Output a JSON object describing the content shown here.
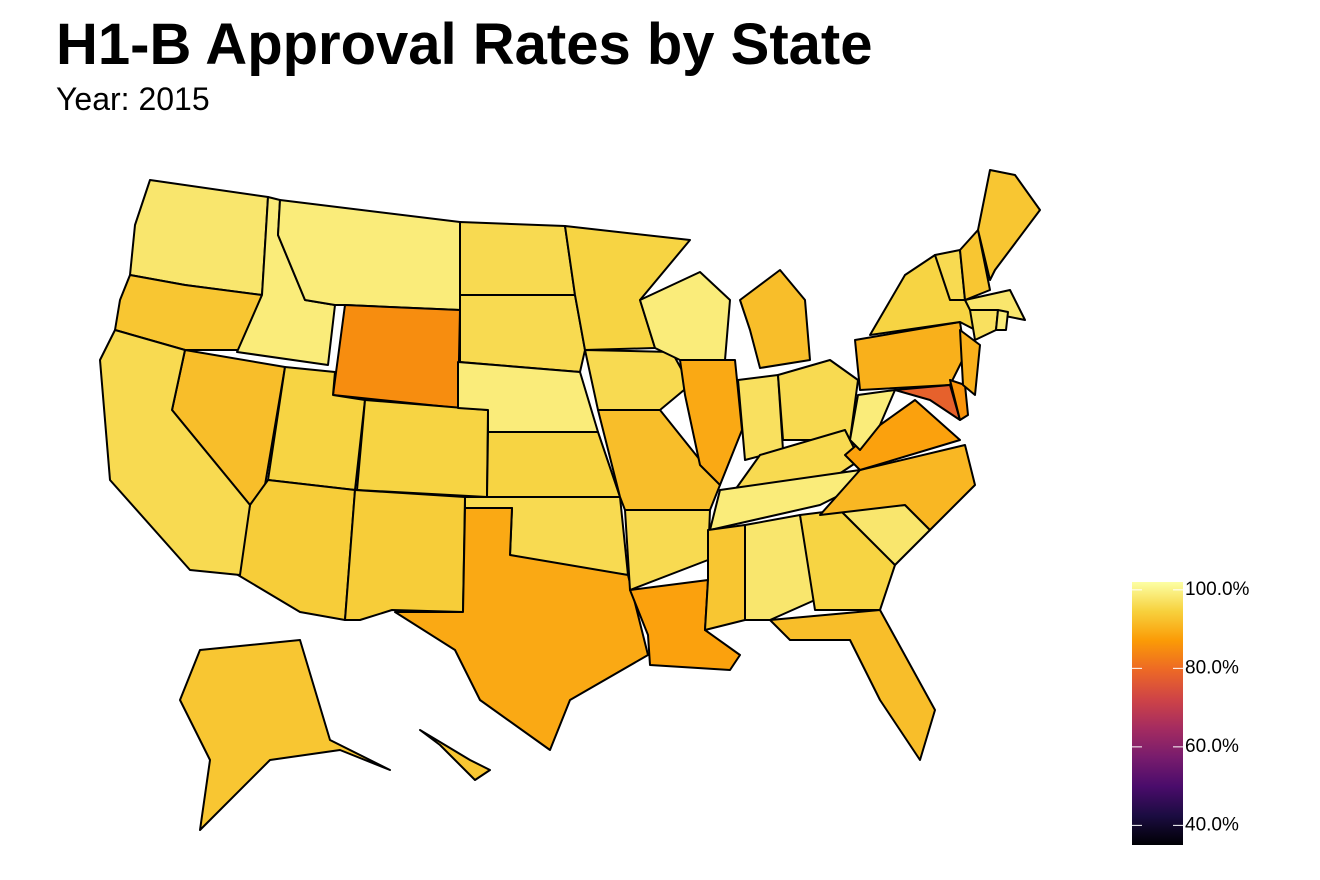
{
  "chart_data": {
    "type": "choropleth",
    "title": "H1-B Approval Rates by State",
    "subtitle": "Year: 2015",
    "values": [
      98,
      93,
      99,
      99,
      85,
      96,
      92,
      95,
      95,
      94,
      94,
      96,
      96,
      99,
      95,
      96,
      89,
      95,
      96,
      92,
      96,
      88,
      99,
      89,
      92,
      97,
      96,
      96,
      99,
      93,
      98,
      95,
      92,
      98,
      91,
      88,
      99,
      90,
      95,
      78,
      86,
      90,
      98,
      97,
      99,
      96,
      93,
      93,
      93,
      93
    ],
    "colorlim": [
      35,
      102
    ],
    "colorticks": [
      {
        "value": 40,
        "label": "40.0%"
      },
      {
        "value": 60,
        "label": "60.0%"
      },
      {
        "value": 80,
        "label": "80.0%"
      },
      {
        "value": 100,
        "label": "100.0%"
      }
    ],
    "colorscale": [
      "#000004",
      "#1b0c41",
      "#4a0c6b",
      "#781c6d",
      "#a52c60",
      "#cf4446",
      "#ed6925",
      "#fb9b06",
      "#f7d13d",
      "#fcffa4"
    ],
    "border_color": "#000000"
  }
}
